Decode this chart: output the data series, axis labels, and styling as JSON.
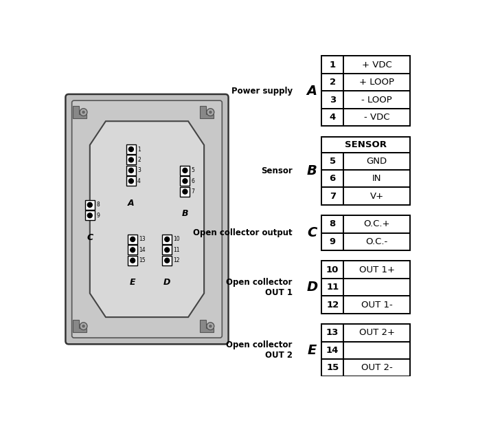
{
  "fig_width": 7.12,
  "fig_height": 6.15,
  "bg_color": "#ffffff",
  "groups": [
    {
      "label": "Power supply",
      "group_letter": "A",
      "header": null,
      "rows": [
        {
          "num": 1,
          "text": "+ VDC"
        },
        {
          "num": 2,
          "text": "+ LOOP"
        },
        {
          "num": 3,
          "text": "- LOOP"
        },
        {
          "num": 4,
          "text": "- VDC"
        }
      ]
    },
    {
      "label": "Sensor",
      "group_letter": "B",
      "header": "SENSOR",
      "rows": [
        {
          "num": 5,
          "text": "GND"
        },
        {
          "num": 6,
          "text": "IN"
        },
        {
          "num": 7,
          "text": "V+"
        }
      ]
    },
    {
      "label": "Open collector output",
      "group_letter": "C",
      "header": null,
      "rows": [
        {
          "num": 8,
          "text": "O.C.+"
        },
        {
          "num": 9,
          "text": "O.C.-"
        }
      ]
    },
    {
      "label": "Open collector\nOUT 1",
      "group_letter": "D",
      "header": null,
      "rows": [
        {
          "num": 10,
          "text": "OUT 1+"
        },
        {
          "num": 11,
          "text": ""
        },
        {
          "num": 12,
          "text": "OUT 1-"
        }
      ]
    },
    {
      "label": "Open collector\nOUT 2",
      "group_letter": "E",
      "header": null,
      "rows": [
        {
          "num": 13,
          "text": "OUT 2+"
        },
        {
          "num": 14,
          "text": ""
        },
        {
          "num": 15,
          "text": "OUT 2-"
        }
      ]
    }
  ]
}
